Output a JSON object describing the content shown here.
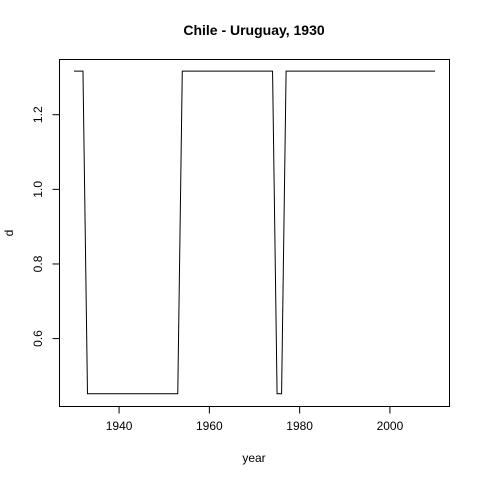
{
  "chart_data": {
    "type": "line",
    "title": "Chile - Uruguay, 1930",
    "xlabel": "year",
    "ylabel": "d",
    "xlim": [
      1926.8,
      2013.2
    ],
    "ylim": [
      0.418,
      1.348
    ],
    "xticks": [
      1940,
      1960,
      1980,
      2000
    ],
    "yticks": [
      0.6,
      0.8,
      1.0,
      1.2
    ],
    "xtick_labels": [
      "1940",
      "1960",
      "1980",
      "2000"
    ],
    "ytick_labels": [
      "0.6",
      "0.8",
      "1.0",
      "1.2"
    ],
    "grid": false,
    "series": [
      {
        "color": "#000000",
        "x": [
          1930,
          1932,
          1933,
          1953,
          1954,
          1974,
          1975,
          1976,
          1977,
          2010
        ],
        "y": [
          1.317,
          1.317,
          0.452,
          0.452,
          1.317,
          1.317,
          0.452,
          0.452,
          1.317,
          1.317
        ]
      }
    ]
  }
}
